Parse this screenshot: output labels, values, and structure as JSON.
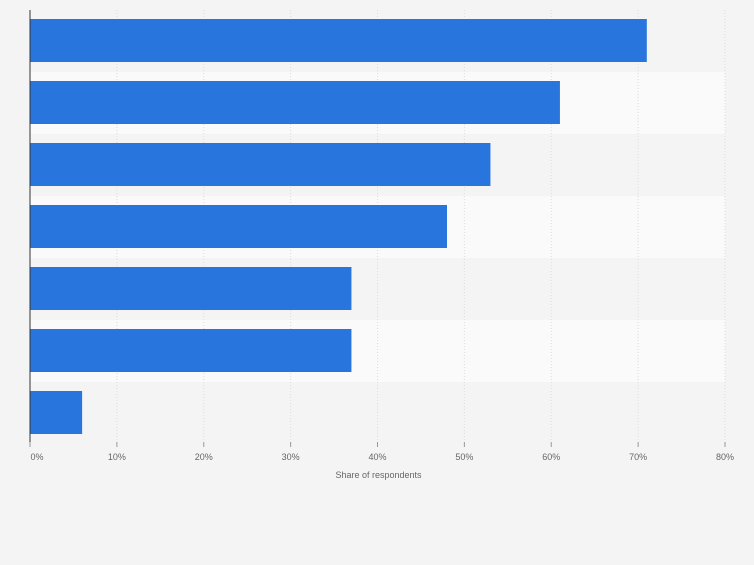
{
  "chart_data": {
    "type": "bar",
    "orientation": "horizontal",
    "categories": [
      "",
      "",
      "",
      "",
      "",
      "",
      ""
    ],
    "values": [
      71,
      61,
      53,
      48,
      37,
      37,
      6
    ],
    "xlabel": "Share of respondents",
    "ylabel": "",
    "xlim": [
      0,
      80
    ],
    "x_ticks": [
      0,
      10,
      20,
      30,
      40,
      50,
      60,
      70,
      80
    ],
    "x_tick_labels": [
      "0%",
      "10%",
      "20%",
      "30%",
      "40%",
      "50%",
      "60%",
      "70%",
      "80%"
    ],
    "grid": true,
    "bar_color": "#2876dd"
  }
}
